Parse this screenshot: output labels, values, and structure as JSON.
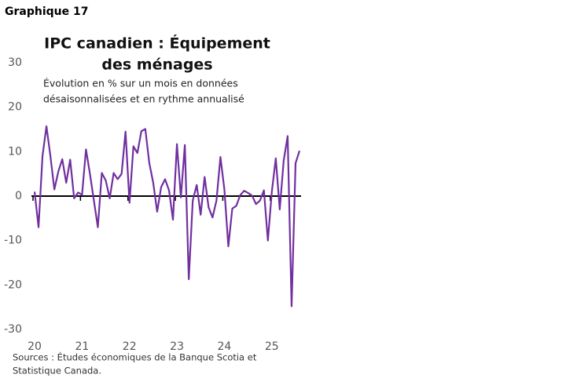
{
  "label": "Graphique 17",
  "chart_data": {
    "type": "line",
    "title": [
      "IPC canadien : Équipement",
      "des ménages"
    ],
    "subtitle": [
      "Évolution en % sur un mois en données",
      "désaisonnalisées et en rythme annualisé"
    ],
    "source": [
      "Sources : Études économiques de la Banque Scotia et",
      "Statistique Canada."
    ],
    "categories": [
      "20",
      null,
      null,
      null,
      null,
      null,
      null,
      null,
      null,
      null,
      null,
      null,
      "21",
      null,
      null,
      null,
      null,
      null,
      null,
      null,
      null,
      null,
      null,
      null,
      "22",
      null,
      null,
      null,
      null,
      null,
      null,
      null,
      null,
      null,
      null,
      null,
      "23",
      null,
      null,
      null,
      null,
      null,
      null,
      null,
      null,
      null,
      null,
      null,
      "24",
      null,
      null,
      null,
      null,
      null,
      null,
      null,
      null,
      null,
      null,
      null,
      "25",
      null,
      null,
      null,
      null,
      null,
      null,
      null
    ],
    "values": [
      1,
      -7,
      9,
      15.7,
      9,
      1.5,
      5.5,
      8.3,
      3,
      8.2,
      -0.5,
      0.8,
      0.3,
      10.5,
      5,
      -1,
      -7,
      5.2,
      3.5,
      -0.5,
      5.2,
      3.8,
      5,
      14.5,
      -1.5,
      11.2,
      9.7,
      14.6,
      15.1,
      7.5,
      3,
      -3.5,
      2,
      3.8,
      1.3,
      -5.3,
      11.7,
      -0.3,
      11.5,
      -18.7,
      -1,
      2.5,
      -4.2,
      4.3,
      -2.5,
      -4.8,
      -1,
      8.8,
      1.5,
      -11.3,
      -2.8,
      -2.2,
      0.2,
      1.2,
      0.7,
      0.1,
      -1.8,
      -1,
      1.3,
      -10,
      1,
      8.5,
      -3,
      8,
      13.5,
      -24.8,
      7.4,
      10.2
    ],
    "color": "#7030a0",
    "ylim": [
      -30,
      30
    ],
    "yticks": [
      -30,
      -20,
      -10,
      0,
      10,
      20,
      30
    ]
  }
}
